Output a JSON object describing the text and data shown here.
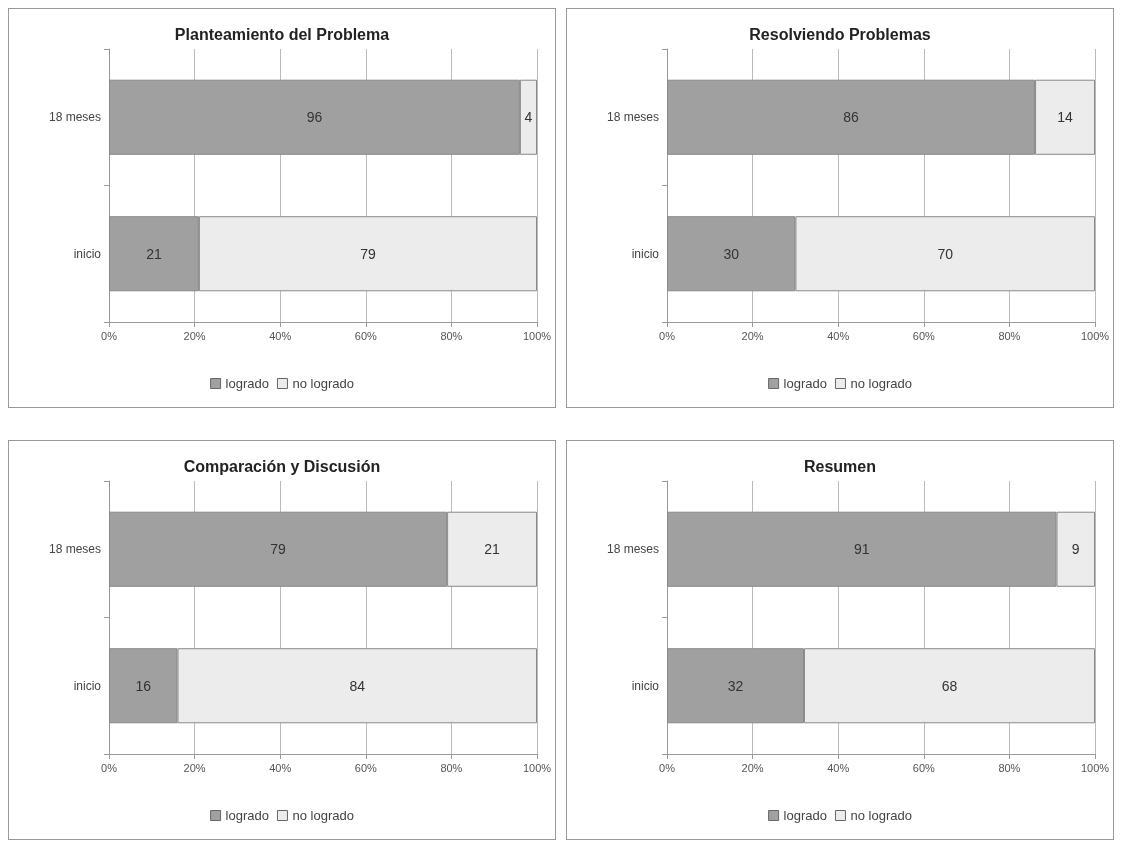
{
  "chart_data": [
    {
      "type": "bar",
      "title": "Planteamiento del Problema",
      "orientation": "horizontal",
      "stacked": true,
      "categories": [
        "18 meses",
        "inicio"
      ],
      "series": [
        {
          "name": "logrado",
          "color": "#a0a0a0",
          "values": [
            96,
            21
          ]
        },
        {
          "name": "no logrado",
          "color": "#ececec",
          "values": [
            4,
            79
          ]
        }
      ],
      "xlim": [
        0,
        100
      ],
      "xticks": [
        {
          "value": 0,
          "label": "0%"
        },
        {
          "value": 20,
          "label": "20%"
        },
        {
          "value": 40,
          "label": "40%"
        },
        {
          "value": 60,
          "label": "60%"
        },
        {
          "value": 80,
          "label": "80%"
        },
        {
          "value": 100,
          "label": "100%"
        }
      ],
      "grid": "x",
      "legend": "bottom",
      "data_labels": true
    },
    {
      "type": "bar",
      "title": "Resolviendo Problemas",
      "orientation": "horizontal",
      "stacked": true,
      "categories": [
        "18 meses",
        "inicio"
      ],
      "series": [
        {
          "name": "logrado",
          "color": "#a0a0a0",
          "values": [
            86,
            30
          ]
        },
        {
          "name": "no logrado",
          "color": "#ececec",
          "values": [
            14,
            70
          ]
        }
      ],
      "xlim": [
        0,
        100
      ],
      "xticks": [
        {
          "value": 0,
          "label": "0%"
        },
        {
          "value": 20,
          "label": "20%"
        },
        {
          "value": 40,
          "label": "40%"
        },
        {
          "value": 60,
          "label": "60%"
        },
        {
          "value": 80,
          "label": "80%"
        },
        {
          "value": 100,
          "label": "100%"
        }
      ],
      "grid": "x",
      "legend": "bottom",
      "data_labels": true
    },
    {
      "type": "bar",
      "title": "Comparación y Discusión",
      "orientation": "horizontal",
      "stacked": true,
      "categories": [
        "18 meses",
        "inicio"
      ],
      "series": [
        {
          "name": "logrado",
          "color": "#a0a0a0",
          "values": [
            79,
            16
          ]
        },
        {
          "name": "no logrado",
          "color": "#ececec",
          "values": [
            21,
            84
          ]
        }
      ],
      "xlim": [
        0,
        100
      ],
      "xticks": [
        {
          "value": 0,
          "label": "0%"
        },
        {
          "value": 20,
          "label": "20%"
        },
        {
          "value": 40,
          "label": "40%"
        },
        {
          "value": 60,
          "label": "60%"
        },
        {
          "value": 80,
          "label": "80%"
        },
        {
          "value": 100,
          "label": "100%"
        }
      ],
      "grid": "x",
      "legend": "bottom",
      "data_labels": true
    },
    {
      "type": "bar",
      "title": "Resumen",
      "orientation": "horizontal",
      "stacked": true,
      "categories": [
        "18 meses",
        "inicio"
      ],
      "series": [
        {
          "name": "logrado",
          "color": "#a0a0a0",
          "values": [
            91,
            32
          ]
        },
        {
          "name": "no logrado",
          "color": "#ececec",
          "values": [
            9,
            68
          ]
        }
      ],
      "xlim": [
        0,
        100
      ],
      "xticks": [
        {
          "value": 0,
          "label": "0%"
        },
        {
          "value": 20,
          "label": "20%"
        },
        {
          "value": 40,
          "label": "40%"
        },
        {
          "value": 60,
          "label": "60%"
        },
        {
          "value": 80,
          "label": "80%"
        },
        {
          "value": 100,
          "label": "100%"
        }
      ],
      "grid": "x",
      "legend": "bottom",
      "data_labels": true
    }
  ]
}
